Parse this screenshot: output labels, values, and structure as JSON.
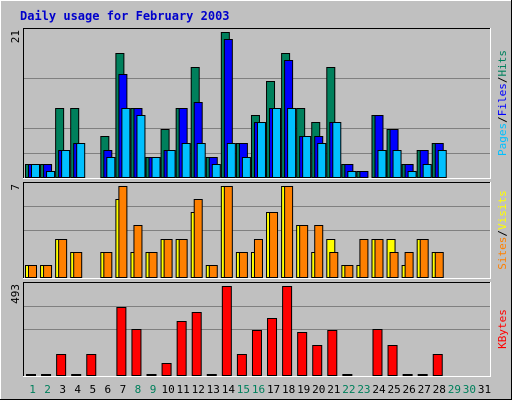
{
  "colors": {
    "hits": "#00805c",
    "files": "#0000ff",
    "pages": "#00c0ff",
    "visits": "#ffff00",
    "sites": "#ff8000",
    "kbytes": "#ff0000",
    "weekday_label": "#008040",
    "weekend_label": "#00805c",
    "title": "#0000cc",
    "panel_bg": "#c0c0c0",
    "grid": "#808080"
  },
  "chart_data": {
    "type": "bar",
    "title": "Daily usage for February 2003",
    "days": [
      "1",
      "2",
      "3",
      "4",
      "5",
      "6",
      "7",
      "8",
      "9",
      "10",
      "11",
      "12",
      "13",
      "14",
      "15",
      "16",
      "17",
      "18",
      "19",
      "20",
      "21",
      "22",
      "23",
      "24",
      "25",
      "26",
      "27",
      "28",
      "29",
      "30",
      "31"
    ],
    "weekend_days": [
      1,
      2,
      8,
      9,
      15,
      16,
      22,
      23,
      29,
      30
    ],
    "panels": [
      {
        "name": "hits-files-pages",
        "ymax": 21,
        "ymax_label": "21",
        "legend": [
          "Pages",
          "/",
          "Files",
          "/",
          "Hits"
        ],
        "series": [
          {
            "name": "Hits",
            "values": [
              2,
              2,
              10,
              10,
              0,
              6,
              18,
              10,
              3,
              7,
              10,
              16,
              3,
              21,
              5,
              9,
              14,
              18,
              10,
              8,
              16,
              2,
              1,
              9,
              7,
              2,
              4,
              5,
              0,
              0,
              0
            ]
          },
          {
            "name": "Files",
            "values": [
              2,
              2,
              4,
              5,
              0,
              4,
              15,
              10,
              3,
              4,
              10,
              11,
              3,
              20,
              5,
              8,
              10,
              17,
              6,
              6,
              8,
              2,
              1,
              9,
              7,
              2,
              4,
              5,
              0,
              0,
              0
            ]
          },
          {
            "name": "Pages",
            "values": [
              2,
              1,
              4,
              5,
              0,
              3,
              10,
              9,
              3,
              4,
              5,
              5,
              2,
              5,
              3,
              8,
              10,
              10,
              6,
              5,
              8,
              1,
              0,
              4,
              4,
              1,
              2,
              4,
              0,
              0,
              0
            ]
          }
        ]
      },
      {
        "name": "visits-sites",
        "ymax": 7,
        "ymax_label": "7",
        "legend": [
          "Sites",
          "/",
          "Visits"
        ],
        "series": [
          {
            "name": "Visits",
            "values": [
              1,
              1,
              3,
              2,
              0,
              2,
              6,
              2,
              2,
              3,
              3,
              5,
              1,
              7,
              2,
              2,
              5,
              7,
              4,
              2,
              3,
              1,
              1,
              3,
              3,
              1,
              3,
              2,
              0,
              0,
              0
            ]
          },
          {
            "name": "Sites",
            "values": [
              1,
              1,
              3,
              2,
              0,
              2,
              7,
              4,
              2,
              3,
              3,
              6,
              1,
              7,
              2,
              3,
              5,
              7,
              4,
              4,
              2,
              1,
              3,
              3,
              2,
              2,
              3,
              2,
              0,
              0,
              0
            ]
          }
        ]
      },
      {
        "name": "kbytes",
        "ymax": 493,
        "ymax_label": "493",
        "legend": [
          "KBytes"
        ],
        "series": [
          {
            "name": "KBytes",
            "values": [
              10,
              10,
              120,
              10,
              120,
              0,
              380,
              260,
              10,
              70,
              300,
              350,
              10,
              493,
              120,
              250,
              320,
              493,
              240,
              170,
              250,
              10,
              0,
              260,
              170,
              10,
              10,
              120,
              0,
              0,
              0
            ]
          }
        ]
      }
    ]
  }
}
